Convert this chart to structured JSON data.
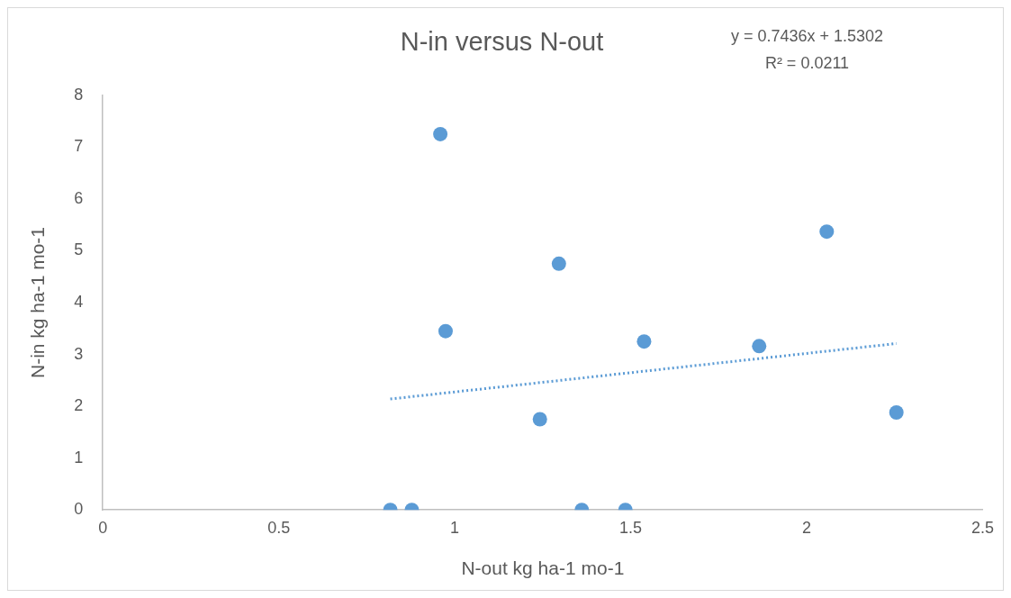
{
  "chart_data": {
    "type": "scatter",
    "title": "N-in versus N-out",
    "xlabel": "N-out kg ha-1 mo-1",
    "ylabel": "N-in kg ha-1 mo-1",
    "annotations": [
      "y = 0.7436x + 1.5302",
      "R² = 0.0211"
    ],
    "xlim": [
      0,
      2.5
    ],
    "xticks": [
      0,
      0.5,
      1,
      1.5,
      2,
      2.5
    ],
    "ylim": [
      0,
      8
    ],
    "yticks": [
      0,
      1,
      2,
      3,
      4,
      5,
      6,
      7,
      8
    ],
    "grid": false,
    "legend": false,
    "marker": "circle",
    "series": [
      {
        "color": "#5b9bd5",
        "x": [
          0.817,
          0.878,
          0.959,
          0.974,
          1.296,
          1.242,
          1.361,
          1.485,
          1.538,
          1.865,
          2.057,
          2.255
        ],
        "values": [
          0,
          0,
          7.25,
          3.45,
          4.75,
          1.75,
          0,
          0,
          3.25,
          3.16,
          5.37,
          1.88
        ]
      },
      {
        "type": "line",
        "color": "#5b9bd5",
        "line_style": "dotted",
        "marker": "none",
        "x": [
          0.817,
          2.255
        ],
        "values": [
          2.14,
          3.21
        ]
      }
    ]
  }
}
